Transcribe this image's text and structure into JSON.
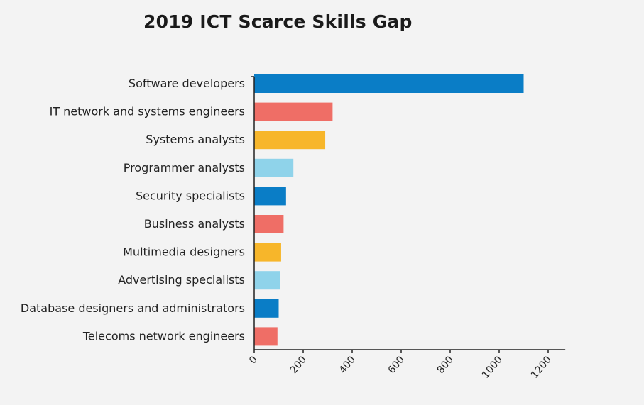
{
  "chart_data": {
    "type": "bar",
    "orientation": "horizontal",
    "title": "2019 ICT Scarce Skills Gap",
    "xlabel": "",
    "ylabel": "",
    "categories": [
      "Software developers",
      "IT network and systems engineers",
      "Systems analysts",
      "Programmer analysts",
      "Security specialists",
      "Business analysts",
      "Multimedia designers",
      "Advertising specialists",
      "Database designers and administrators",
      "Telecoms network engineers"
    ],
    "values": [
      1100,
      320,
      290,
      160,
      130,
      120,
      110,
      105,
      100,
      95
    ],
    "colors": [
      "#0a7dc6",
      "#ef6e66",
      "#f7b62a",
      "#8fd3ea",
      "#0a7dc6",
      "#ef6e66",
      "#f7b62a",
      "#8fd3ea",
      "#0a7dc6",
      "#ef6e66"
    ],
    "xlim": [
      0,
      1270
    ],
    "xticks": [
      0,
      200,
      400,
      600,
      800,
      1000,
      1200
    ],
    "grid": false,
    "legend": "none"
  }
}
